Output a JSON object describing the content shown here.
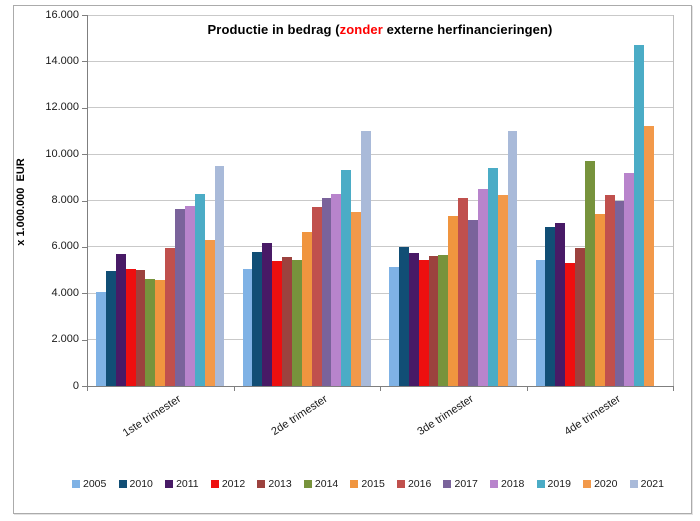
{
  "window": {
    "background": "#FFFFFF",
    "frame_border_color": "#ABABAB"
  },
  "chart_data": {
    "type": "bar",
    "title": {
      "prefix": "Productie in bedrag (",
      "highlight": "zonder",
      "suffix": " externe herfinancieringen)",
      "highlight_color": "#FF0000"
    },
    "ylabel": "x 1.000.000  EUR",
    "xlabel": "",
    "categories": [
      "1ste trimester",
      "2de trimester",
      "3de trimester",
      "4de trimester"
    ],
    "series": [
      {
        "name": "2005",
        "color": "#7FB2E5",
        "values": [
          4050,
          5050,
          5150,
          5450
        ]
      },
      {
        "name": "2010",
        "color": "#114E75",
        "values": [
          4950,
          5800,
          6000,
          6850
        ]
      },
      {
        "name": "2011",
        "color": "#481A66",
        "values": [
          5700,
          6150,
          5750,
          7050
        ]
      },
      {
        "name": "2012",
        "color": "#EE0F0F",
        "values": [
          5050,
          5400,
          5450,
          5300
        ]
      },
      {
        "name": "2013",
        "color": "#9C423E",
        "values": [
          5000,
          5550,
          5600,
          5950
        ]
      },
      {
        "name": "2014",
        "color": "#77933C",
        "values": [
          4600,
          5450,
          5650,
          9700
        ]
      },
      {
        "name": "2015",
        "color": "#F0953F",
        "values": [
          4550,
          6650,
          7350,
          7400
        ]
      },
      {
        "name": "2016",
        "color": "#C0504D",
        "values": [
          5950,
          7700,
          8100,
          8250
        ]
      },
      {
        "name": "2017",
        "color": "#7A639B",
        "values": [
          7650,
          8100,
          7150,
          8000
        ]
      },
      {
        "name": "2018",
        "color": "#B884CC",
        "values": [
          7750,
          8300,
          8500,
          9200
        ]
      },
      {
        "name": "2019",
        "color": "#4BACC6",
        "values": [
          8300,
          9300,
          9400,
          14700
        ]
      },
      {
        "name": "2020",
        "color": "#F2994A",
        "values": [
          6300,
          7500,
          8250,
          11200
        ]
      },
      {
        "name": "2021",
        "color": "#A9BAD9",
        "values": [
          9500,
          11000,
          11000,
          null
        ]
      }
    ],
    "ylim": [
      0,
      16000
    ],
    "ytick_step": 2000,
    "ytick_labels": [
      "0",
      "2.000",
      "4.000",
      "6.000",
      "8.000",
      "10.000",
      "12.000",
      "14.000",
      "16.000"
    ],
    "grid": true,
    "legend_position": "bottom",
    "gridline_color": "#C9C9C9",
    "axis_color": "#7F7F7F"
  }
}
